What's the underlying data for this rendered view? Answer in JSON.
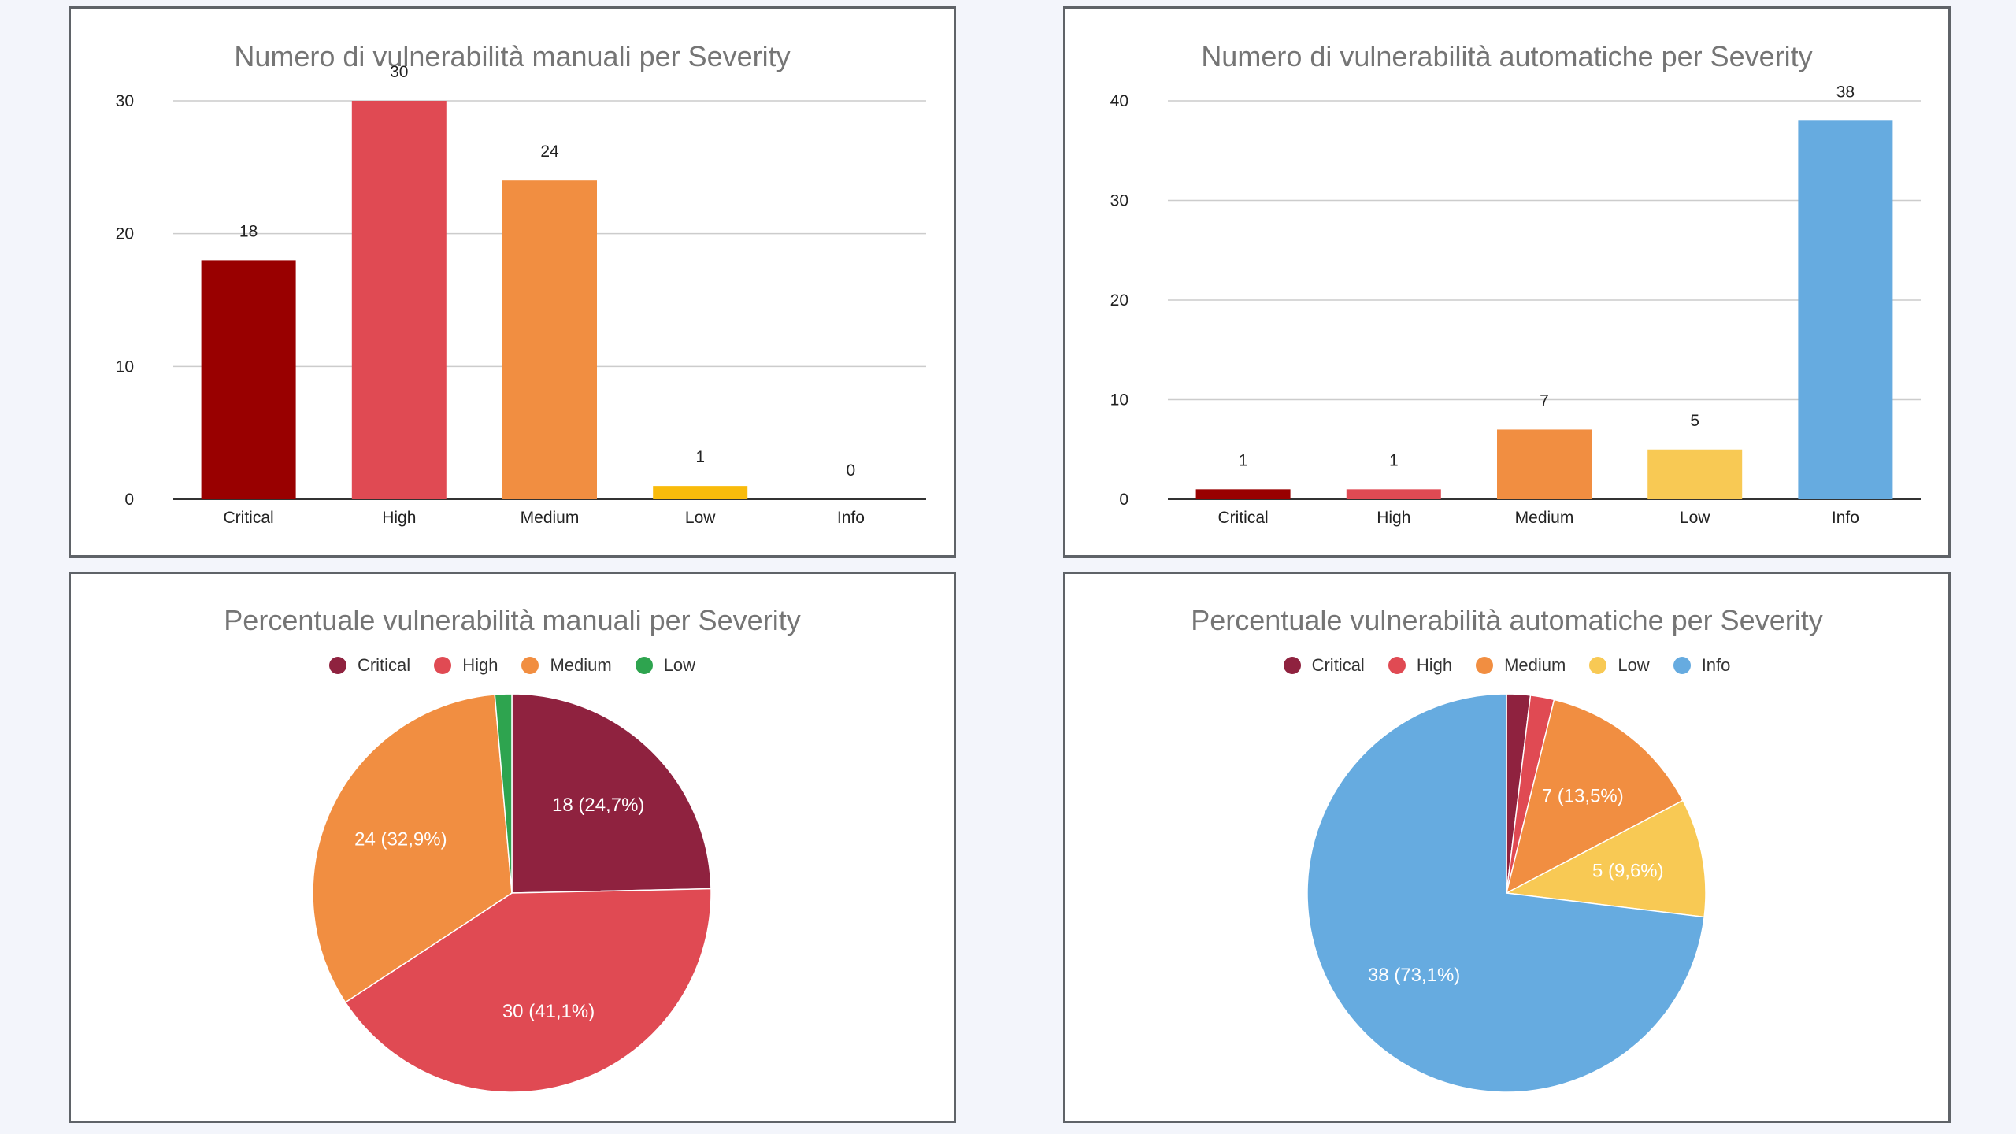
{
  "chart_data": [
    {
      "type": "bar",
      "title": "Numero di vulnerabilità manuali per Severity",
      "categories": [
        "Critical",
        "High",
        "Medium",
        "Low",
        "Info"
      ],
      "values": [
        18,
        30,
        24,
        1,
        0
      ],
      "value_labels": [
        "18",
        "30",
        "24",
        "1",
        "0"
      ],
      "colors": [
        "#990000",
        "#e04a53",
        "#f18e41",
        "#f9bb0b",
        "#64a9e0"
      ],
      "ylim": [
        0,
        30
      ],
      "yticks": [
        0,
        10,
        20,
        30
      ],
      "ytick_labels": [
        "0",
        "10",
        "20",
        "30"
      ],
      "grid": true
    },
    {
      "type": "bar",
      "title": "Numero di vulnerabilità automatiche per Severity",
      "categories": [
        "Critical",
        "High",
        "Medium",
        "Low",
        "Info"
      ],
      "values": [
        1,
        1,
        7,
        5,
        38
      ],
      "value_labels": [
        "1",
        "1",
        "7",
        "5",
        "38"
      ],
      "colors": [
        "#990000",
        "#e04a53",
        "#f18e41",
        "#f8c954",
        "#66abe0"
      ],
      "ylim": [
        0,
        40
      ],
      "yticks": [
        0,
        10,
        20,
        30,
        40
      ],
      "ytick_labels": [
        "0",
        "10",
        "20",
        "30",
        "40"
      ],
      "grid": true
    },
    {
      "type": "pie",
      "title": "Percentuale vulnerabilità manuali per Severity",
      "legend_position": "top",
      "legend": [
        "Critical",
        "High",
        "Medium",
        "Low"
      ],
      "categories": [
        "Critical",
        "High",
        "Medium",
        "Low"
      ],
      "values": [
        18,
        30,
        24,
        1
      ],
      "slice_labels": [
        "18 (24,7%)",
        "30 (41,1%)",
        "24 (32,9%)",
        ""
      ],
      "colors": [
        "#8f223f",
        "#e04a53",
        "#f18e41",
        "#2ea44f"
      ]
    },
    {
      "type": "pie",
      "title": "Percentuale vulnerabilità automatiche per Severity",
      "legend_position": "top",
      "legend": [
        "Critical",
        "High",
        "Medium",
        "Low",
        "Info"
      ],
      "categories": [
        "Critical",
        "High",
        "Medium",
        "Low",
        "Info"
      ],
      "values": [
        1,
        1,
        7,
        5,
        38
      ],
      "slice_labels": [
        "",
        "",
        "7 (13,5%)",
        "5 (9,6%)",
        "38 (73,1%)"
      ],
      "colors": [
        "#8f223f",
        "#e04a53",
        "#f18e41",
        "#f8c954",
        "#66abe0"
      ]
    }
  ]
}
